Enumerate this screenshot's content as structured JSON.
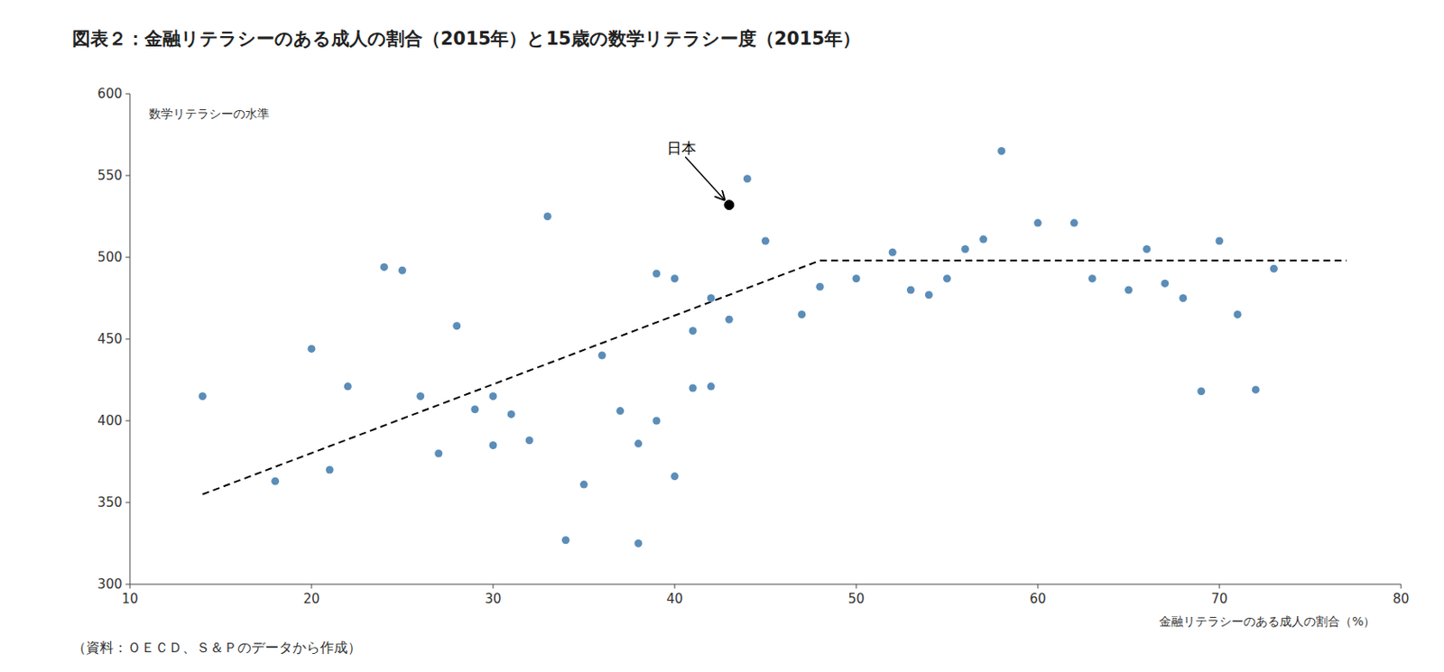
{
  "chart_data": {
    "type": "scatter",
    "title": "図表２：金融リテラシーのある成人の割合（2015年）と15歳の数学リテラシー度（2015年）",
    "x_label": "金融リテラシーのある成人の割合（%）",
    "y_label": "数学リテラシーの水準",
    "source": "（資料：ＯＥＣＤ、Ｓ＆Ｐのデータから作成）",
    "xlim": [
      10,
      80
    ],
    "ylim": [
      300,
      600
    ],
    "xticks": [
      10,
      20,
      30,
      40,
      50,
      60,
      70,
      80
    ],
    "yticks": [
      300,
      350,
      400,
      450,
      500,
      550,
      600
    ],
    "grid": false,
    "series": [
      {
        "type": "scatter",
        "color": "#5B8DB8",
        "x": [
          14,
          18,
          20,
          21,
          22,
          24,
          25,
          26,
          27,
          28,
          29,
          30,
          30,
          31,
          32,
          33,
          34,
          35,
          36,
          37,
          38,
          38,
          39,
          39,
          40,
          40,
          41,
          41,
          42,
          42,
          43,
          44,
          45,
          47,
          48,
          50,
          52,
          53,
          54,
          55,
          56,
          57,
          58,
          60,
          62,
          63,
          65,
          66,
          67,
          68,
          69,
          70,
          71,
          72,
          73
        ],
        "values": [
          415,
          363,
          444,
          370,
          421,
          494,
          492,
          415,
          380,
          458,
          407,
          385,
          415,
          404,
          388,
          525,
          327,
          361,
          440,
          406,
          386,
          325,
          400,
          490,
          487,
          366,
          455,
          420,
          421,
          475,
          462,
          548,
          510,
          465,
          482,
          487,
          503,
          480,
          477,
          487,
          505,
          511,
          565,
          521,
          521,
          487,
          480,
          505,
          484,
          475,
          418,
          510,
          465,
          419,
          493
        ]
      },
      {
        "type": "scatter",
        "color": "#000000",
        "x": [
          43
        ],
        "values": [
          532
        ]
      },
      {
        "type": "line",
        "line_style": "dashed",
        "color": "#000000",
        "x": [
          14,
          48
        ],
        "values": [
          355,
          498
        ]
      },
      {
        "type": "line",
        "line_style": "dashed",
        "color": "#000000",
        "x": [
          48,
          77
        ],
        "values": [
          498,
          498
        ]
      }
    ],
    "annotations": [
      {
        "text": "日本",
        "x": 43,
        "y": 532
      }
    ]
  }
}
